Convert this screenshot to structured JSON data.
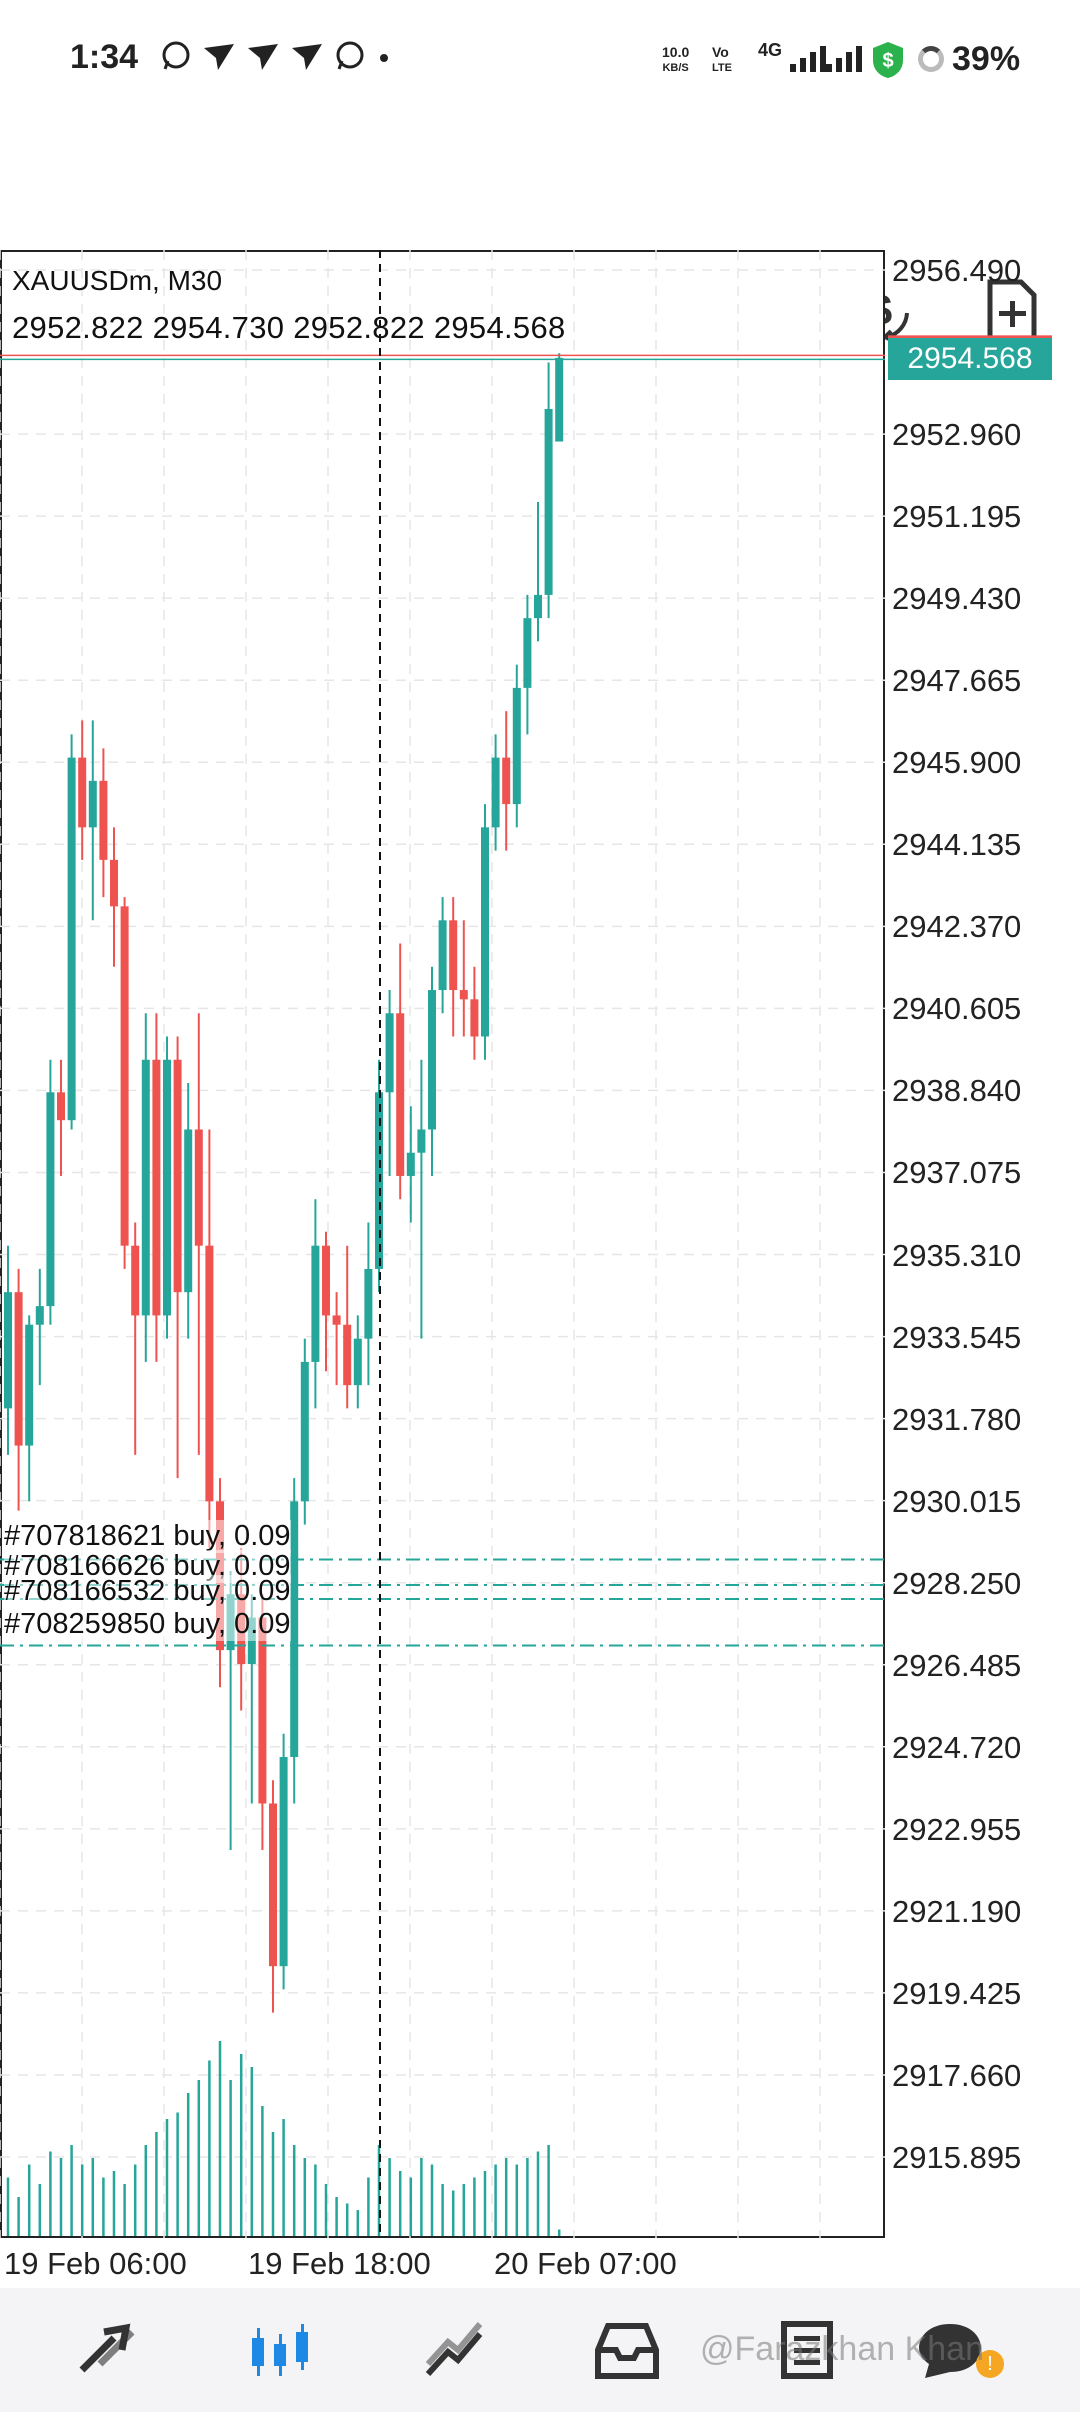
{
  "status_bar": {
    "time": "1:34",
    "notification_icons": [
      "whatsapp-icon",
      "telegram-icon",
      "telegram-icon",
      "telegram-icon",
      "whatsapp-icon"
    ],
    "net_speed_value": "10.0",
    "net_speed_unit": "KB/S",
    "volte_top": "Vo",
    "volte_bottom": "LTE",
    "network": "4G",
    "battery": "39%"
  },
  "toolbar": {
    "icons": [
      "menu-icon",
      "crosshair-icon",
      "indicators-icon",
      "shapes-icon",
      "currency-icon",
      "new-order-icon"
    ]
  },
  "chart": {
    "symbol": "XAUUSDm, M30",
    "ohlc": "2952.822 2954.730 2952.822 2954.568",
    "current_price": "2954.568",
    "price_axis": [
      "2956.490",
      "2952.960",
      "2951.195",
      "2949.430",
      "2947.665",
      "2945.900",
      "2944.135",
      "2942.370",
      "2940.605",
      "2938.840",
      "2937.075",
      "2935.310",
      "2933.545",
      "2931.780",
      "2930.015",
      "2928.250",
      "2926.485",
      "2924.720",
      "2922.955",
      "2921.190",
      "2919.425",
      "2917.660",
      "2915.895"
    ],
    "time_axis": [
      "19 Feb 06:00",
      "19 Feb 18:00",
      "20 Feb 07:00"
    ],
    "orders": [
      {
        "label": "#707818621 buy, 0.09",
        "price": 2928.75
      },
      {
        "label": "#708166626 buy, 0.09",
        "price": 2928.2
      },
      {
        "label": "#708166532 buy, 0.09",
        "price": 2927.9
      },
      {
        "label": "#708259850 buy, 0.09",
        "price": 2926.9
      }
    ],
    "colors": {
      "bull": "#26a69a",
      "bear": "#ef5350",
      "grid": "#e6e6e6"
    }
  },
  "chart_data": {
    "type": "candlestick",
    "title": "XAUUSDm, M30",
    "ylim": [
      2914.5,
      2957.5
    ],
    "candles": [
      {
        "o": 2932.0,
        "h": 2935.5,
        "l": 2931.0,
        "c": 2934.5
      },
      {
        "o": 2934.5,
        "h": 2935.0,
        "l": 2929.8,
        "c": 2931.2
      },
      {
        "o": 2931.2,
        "h": 2934.0,
        "l": 2930.0,
        "c": 2933.8
      },
      {
        "o": 2933.8,
        "h": 2935.0,
        "l": 2932.5,
        "c": 2934.2
      },
      {
        "o": 2934.2,
        "h": 2939.5,
        "l": 2933.8,
        "c": 2938.8
      },
      {
        "o": 2938.8,
        "h": 2939.5,
        "l": 2937.0,
        "c": 2938.2
      },
      {
        "o": 2938.2,
        "h": 2946.5,
        "l": 2938.0,
        "c": 2946.0
      },
      {
        "o": 2946.0,
        "h": 2946.8,
        "l": 2943.8,
        "c": 2944.5
      },
      {
        "o": 2944.5,
        "h": 2946.8,
        "l": 2942.5,
        "c": 2945.5
      },
      {
        "o": 2945.5,
        "h": 2946.2,
        "l": 2943.0,
        "c": 2943.8
      },
      {
        "o": 2943.8,
        "h": 2944.5,
        "l": 2941.5,
        "c": 2942.8
      },
      {
        "o": 2942.8,
        "h": 2943.0,
        "l": 2935.0,
        "c": 2935.5
      },
      {
        "o": 2935.5,
        "h": 2936.0,
        "l": 2931.0,
        "c": 2934.0
      },
      {
        "o": 2934.0,
        "h": 2940.5,
        "l": 2933.0,
        "c": 2939.5
      },
      {
        "o": 2939.5,
        "h": 2940.5,
        "l": 2933.0,
        "c": 2934.0
      },
      {
        "o": 2934.0,
        "h": 2940.0,
        "l": 2933.5,
        "c": 2939.5
      },
      {
        "o": 2939.5,
        "h": 2940.0,
        "l": 2930.5,
        "c": 2934.5
      },
      {
        "o": 2934.5,
        "h": 2939.0,
        "l": 2933.5,
        "c": 2938.0
      },
      {
        "o": 2938.0,
        "h": 2940.5,
        "l": 2931.0,
        "c": 2935.5
      },
      {
        "o": 2935.5,
        "h": 2938.0,
        "l": 2929.0,
        "c": 2930.0
      },
      {
        "o": 2930.0,
        "h": 2930.5,
        "l": 2926.0,
        "c": 2926.8
      },
      {
        "o": 2926.8,
        "h": 2928.5,
        "l": 2922.5,
        "c": 2928.0
      },
      {
        "o": 2928.0,
        "h": 2929.0,
        "l": 2925.5,
        "c": 2926.5
      },
      {
        "o": 2926.5,
        "h": 2928.0,
        "l": 2923.5,
        "c": 2927.5
      },
      {
        "o": 2927.5,
        "h": 2928.0,
        "l": 2922.5,
        "c": 2923.5
      },
      {
        "o": 2923.5,
        "h": 2924.0,
        "l": 2919.0,
        "c": 2920.0
      },
      {
        "o": 2920.0,
        "h": 2925.0,
        "l": 2919.5,
        "c": 2924.5
      },
      {
        "o": 2924.5,
        "h": 2930.5,
        "l": 2923.5,
        "c": 2930.0
      },
      {
        "o": 2930.0,
        "h": 2933.5,
        "l": 2929.5,
        "c": 2933.0
      },
      {
        "o": 2933.0,
        "h": 2936.5,
        "l": 2932.0,
        "c": 2935.5
      },
      {
        "o": 2935.5,
        "h": 2935.8,
        "l": 2932.8,
        "c": 2934.0
      },
      {
        "o": 2934.0,
        "h": 2934.5,
        "l": 2932.5,
        "c": 2933.8
      },
      {
        "o": 2933.8,
        "h": 2935.5,
        "l": 2932.0,
        "c": 2932.5
      },
      {
        "o": 2932.5,
        "h": 2934.0,
        "l": 2932.0,
        "c": 2933.5
      },
      {
        "o": 2933.5,
        "h": 2936.0,
        "l": 2932.5,
        "c": 2935.0
      },
      {
        "o": 2935.0,
        "h": 2939.5,
        "l": 2934.5,
        "c": 2938.8
      },
      {
        "o": 2938.8,
        "h": 2941.0,
        "l": 2937.0,
        "c": 2940.5
      },
      {
        "o": 2940.5,
        "h": 2942.0,
        "l": 2936.5,
        "c": 2937.0
      },
      {
        "o": 2937.0,
        "h": 2938.5,
        "l": 2936.0,
        "c": 2937.5
      },
      {
        "o": 2937.5,
        "h": 2939.5,
        "l": 2933.5,
        "c": 2938.0
      },
      {
        "o": 2938.0,
        "h": 2941.5,
        "l": 2937.0,
        "c": 2941.0
      },
      {
        "o": 2941.0,
        "h": 2943.0,
        "l": 2940.5,
        "c": 2942.5
      },
      {
        "o": 2942.5,
        "h": 2943.0,
        "l": 2940.0,
        "c": 2941.0
      },
      {
        "o": 2941.0,
        "h": 2942.5,
        "l": 2940.0,
        "c": 2940.8
      },
      {
        "o": 2940.8,
        "h": 2941.5,
        "l": 2939.5,
        "c": 2940.0
      },
      {
        "o": 2940.0,
        "h": 2945.0,
        "l": 2939.5,
        "c": 2944.5
      },
      {
        "o": 2944.5,
        "h": 2946.5,
        "l": 2944.0,
        "c": 2946.0
      },
      {
        "o": 2946.0,
        "h": 2947.0,
        "l": 2944.0,
        "c": 2945.0
      },
      {
        "o": 2945.0,
        "h": 2948.0,
        "l": 2944.5,
        "c": 2947.5
      },
      {
        "o": 2947.5,
        "h": 2949.5,
        "l": 2946.5,
        "c": 2949.0
      },
      {
        "o": 2949.0,
        "h": 2951.5,
        "l": 2948.5,
        "c": 2949.5
      },
      {
        "o": 2949.5,
        "h": 2954.5,
        "l": 2949.0,
        "c": 2953.5
      },
      {
        "o": 2952.8,
        "h": 2954.7,
        "l": 2952.8,
        "c": 2954.6
      }
    ],
    "volumes": [
      45,
      30,
      55,
      40,
      65,
      60,
      70,
      55,
      60,
      45,
      50,
      40,
      55,
      70,
      80,
      90,
      95,
      110,
      120,
      135,
      150,
      120,
      140,
      130,
      100,
      80,
      90,
      70,
      60,
      55,
      40,
      30,
      25,
      20,
      45,
      70,
      60,
      50,
      45,
      60,
      55,
      40,
      35,
      40,
      45,
      50,
      55,
      60,
      55,
      60,
      65,
      70,
      5
    ]
  },
  "bottom_nav": {
    "items": [
      "quotes-icon",
      "chart-icon",
      "trade-icon",
      "history-icon",
      "news-icon",
      "messages-icon"
    ],
    "watermark": "@Farazkhan Khan"
  }
}
